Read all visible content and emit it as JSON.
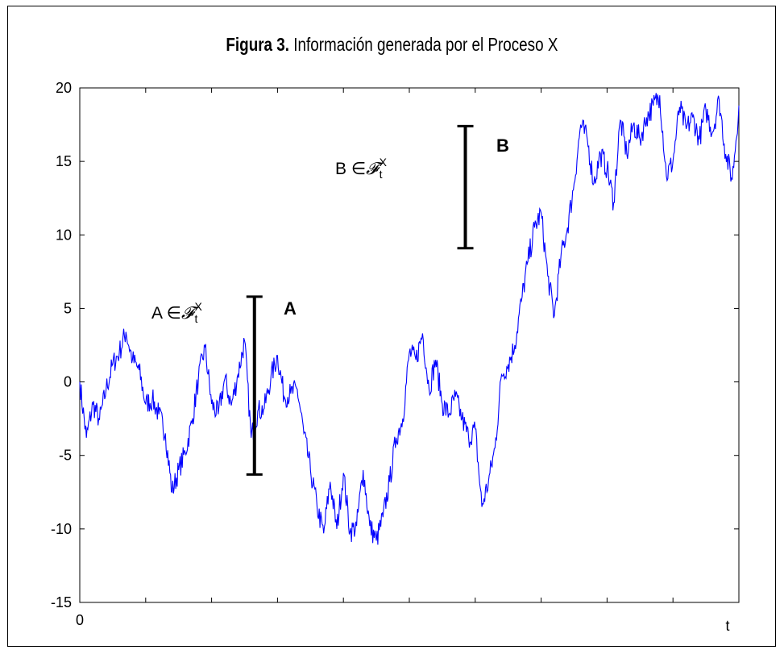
{
  "title": {
    "bold": "Figura 3.",
    "text": " Información generada por el Proceso X"
  },
  "chart_data": {
    "type": "line",
    "title": "Figura 3. Información generada por el Proceso X",
    "xlabel": "t",
    "ylabel": "",
    "xlim": [
      0,
      10
    ],
    "ylim": [
      -15,
      20
    ],
    "y_ticks": [
      "20",
      "15",
      "10",
      "5",
      "0",
      "-5",
      "-10",
      "-15"
    ],
    "y_tick_values": [
      20,
      15,
      10,
      5,
      0,
      -5,
      -10,
      -15
    ],
    "x_tick_labels": [
      "0"
    ],
    "x_tick_values": [
      0,
      1,
      2,
      3,
      4,
      5,
      6,
      7,
      8,
      9,
      10
    ],
    "x_end_label": "t",
    "grid": false,
    "line_color": "#0000ff",
    "series": [
      {
        "x": [
          0,
          0.1,
          0.2,
          0.3,
          0.4,
          0.5,
          0.6,
          0.7,
          0.8,
          0.9,
          1.0,
          1.1,
          1.2,
          1.3,
          1.4,
          1.5,
          1.6,
          1.7,
          1.8,
          1.9,
          2.0,
          2.1,
          2.2,
          2.3,
          2.4,
          2.5,
          2.6,
          2.7,
          2.8,
          2.9,
          3.0,
          3.1,
          3.2,
          3.3,
          3.4,
          3.5,
          3.6,
          3.7,
          3.8,
          3.9,
          4.0,
          4.1,
          4.2,
          4.3,
          4.4,
          4.5,
          4.6,
          4.7,
          4.8,
          4.9,
          5.0,
          5.1,
          5.2,
          5.3,
          5.4,
          5.5,
          5.6,
          5.7,
          5.8,
          5.9,
          6.0,
          6.1,
          6.2,
          6.3,
          6.4,
          6.5,
          6.6,
          6.7,
          6.8,
          6.9,
          7.0,
          7.1,
          7.2,
          7.3,
          7.4,
          7.5,
          7.6,
          7.7,
          7.8,
          7.9,
          8.0,
          8.1,
          8.2,
          8.3,
          8.4,
          8.5,
          8.6,
          8.7,
          8.8,
          8.9,
          9.0,
          9.1,
          9.2,
          9.3,
          9.4,
          9.5,
          9.6,
          9.7,
          9.8,
          9.9,
          10.0
        ],
        "y": [
          0,
          -3.8,
          -1.5,
          -2.6,
          -0.5,
          1.2,
          2.0,
          3.4,
          1.5,
          0.8,
          -1.5,
          -1.2,
          -2.2,
          -3.5,
          -7.5,
          -6.0,
          -4.8,
          -2.8,
          0.2,
          2.4,
          -1.5,
          -2.2,
          0.2,
          -1.6,
          0.5,
          2.8,
          -3.8,
          -2.0,
          -1.8,
          0.3,
          1.8,
          -1.0,
          -0.8,
          -0.5,
          -3.5,
          -6.0,
          -8.5,
          -10.3,
          -6.8,
          -10.0,
          -6.2,
          -10.2,
          -9.8,
          -6.0,
          -9.8,
          -10.8,
          -9.2,
          -6.8,
          -3.8,
          -2.5,
          2.0,
          1.5,
          3.3,
          -0.5,
          1.5,
          -1.5,
          -2.2,
          -1.0,
          -2.5,
          -3.8,
          -3.2,
          -8.5,
          -6.8,
          -4.5,
          0.5,
          1.2,
          2.5,
          5.5,
          8.2,
          10.5,
          11.5,
          7.2,
          4.5,
          8.5,
          10.5,
          13.5,
          17.5,
          16.5,
          13.5,
          15.5,
          14.5,
          12.2,
          17.8,
          15.5,
          17.5,
          16.5,
          18.0,
          18.8,
          19.5,
          14.0,
          15.0,
          18.7,
          17.2,
          18.0,
          16.5,
          18.5,
          17.0,
          19.2,
          15.5,
          13.8,
          18.8
        ]
      }
    ]
  },
  "annotations": {
    "A": {
      "label": "A",
      "element": "A ∈ ",
      "script_letter": "𝓕",
      "subscript": "t",
      "superscript": "X",
      "bar_top": 5.8,
      "bar_bottom": -6.3,
      "bar_x": 2.65
    },
    "B": {
      "label": "B",
      "element": "B ∈ ",
      "script_letter": "𝓕",
      "subscript": "t",
      "superscript": "X",
      "bar_top": 17.4,
      "bar_bottom": 9.1,
      "bar_x": 5.85
    }
  }
}
